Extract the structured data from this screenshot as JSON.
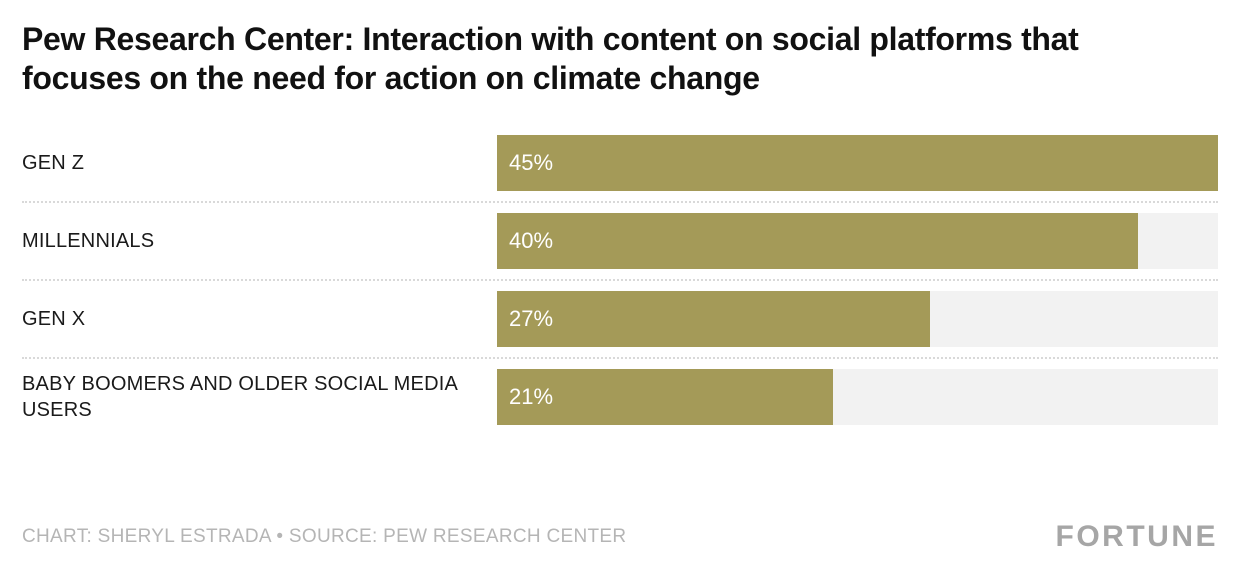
{
  "title": "Pew Research Center: Interaction with content on social platforms that focuses on the need for action on climate change",
  "chart_data": {
    "type": "bar",
    "orientation": "horizontal",
    "title": "Pew Research Center: Interaction with content on social platforms that focuses on the need for action on climate change",
    "categories": [
      "GEN Z",
      "MILLENNIALS",
      "GEN X",
      "BABY BOOMERS AND OLDER SOCIAL MEDIA USERS"
    ],
    "values": [
      45,
      40,
      27,
      21
    ],
    "value_labels": [
      "45%",
      "40%",
      "27%",
      "21%"
    ],
    "xlim": [
      0,
      45
    ],
    "grid": false,
    "legend": "none",
    "bar_color": "#A49A58",
    "track_color": "#F2F2F2"
  },
  "footer": {
    "credit": "CHART: SHERYL ESTRADA • SOURCE: PEW RESEARCH CENTER",
    "brand": "FORTUNE"
  }
}
